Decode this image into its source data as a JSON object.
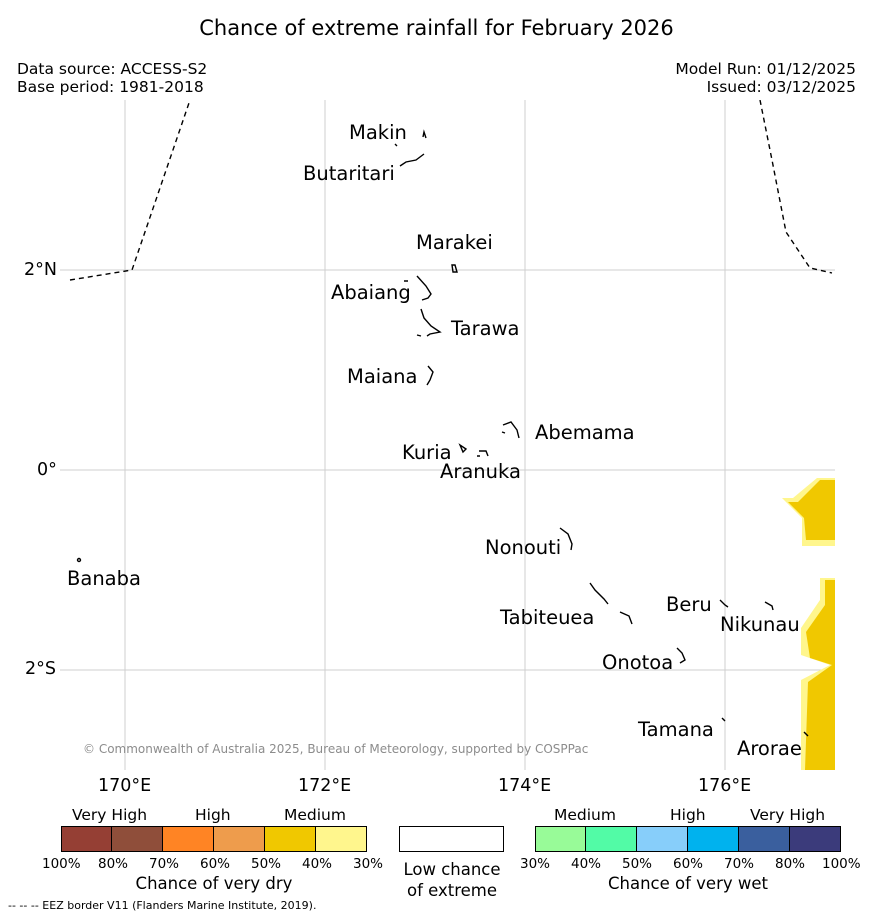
{
  "title": "Chance of extreme rainfall for February 2026",
  "data_source": "Data source: ACCESS-S2",
  "base_period": "Base period: 1981-2018",
  "model_run": "Model Run: 01/12/2025",
  "issued": "Issued: 03/12/2025",
  "map": {
    "places": [
      {
        "id": "makin",
        "name": "Makin"
      },
      {
        "id": "butaritari",
        "name": "Butaritari"
      },
      {
        "id": "marakei",
        "name": "Marakei"
      },
      {
        "id": "abaiang",
        "name": "Abaiang"
      },
      {
        "id": "tarawa",
        "name": "Tarawa"
      },
      {
        "id": "maiana",
        "name": "Maiana"
      },
      {
        "id": "abemama",
        "name": "Abemama"
      },
      {
        "id": "kuria",
        "name": "Kuria"
      },
      {
        "id": "aranuka",
        "name": "Aranuka"
      },
      {
        "id": "nonouti",
        "name": "Nonouti"
      },
      {
        "id": "banaba",
        "name": "Banaba"
      },
      {
        "id": "tabiteuea",
        "name": "Tabiteuea"
      },
      {
        "id": "beru",
        "name": "Beru"
      },
      {
        "id": "nikunau",
        "name": "Nikunau"
      },
      {
        "id": "onotoa",
        "name": "Onotoa"
      },
      {
        "id": "tamana",
        "name": "Tamana"
      },
      {
        "id": "arorae",
        "name": "Arorae"
      }
    ],
    "lat_labels": [
      "2°N",
      "0°",
      "2°S"
    ],
    "lon_labels": [
      "170°E",
      "172°E",
      "174°E",
      "176°E"
    ],
    "copyright": "© Commonwealth of Australia 2025, Bureau of Meteorology, supported by COSPPac"
  },
  "legend": {
    "dry": {
      "categories": [
        "Very High",
        "High",
        "Medium"
      ],
      "colors": [
        "#953f34",
        "#8f4e3a",
        "#ff8424",
        "#ee9c4c",
        "#f0c800",
        "#fff68d"
      ],
      "ticks": [
        "100%",
        "80%",
        "70%",
        "60%",
        "50%",
        "40%",
        "30%"
      ],
      "label": "Chance of very dry"
    },
    "low": {
      "color": "#ffffff",
      "label_line1": "Low chance",
      "label_line2": "of extreme"
    },
    "wet": {
      "categories": [
        "Medium",
        "High",
        "Very High"
      ],
      "colors": [
        "#98fb98",
        "#52fba6",
        "#87cefa",
        "#00b2ee",
        "#3a5f9e",
        "#3b3b7b"
      ],
      "ticks": [
        "30%",
        "40%",
        "50%",
        "60%",
        "70%",
        "80%",
        "100%"
      ],
      "label": "Chance of very wet"
    }
  },
  "eez_note": "--  --  -- EEZ border V11 (Flanders Marine Institute, 2019)."
}
